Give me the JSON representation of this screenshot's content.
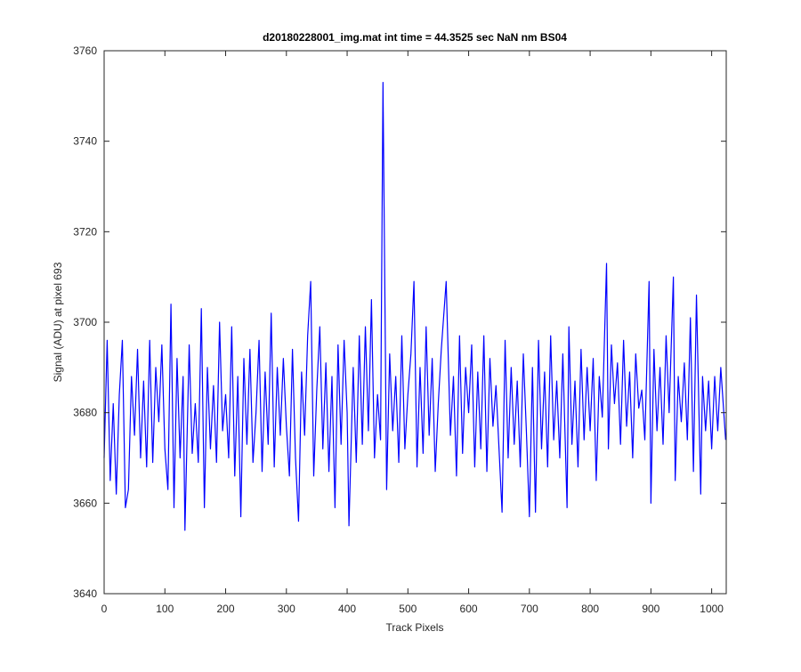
{
  "chart_data": {
    "type": "line",
    "title": "d20180228001_img.mat int time = 44.3525 sec  NaN nm BS04",
    "x_label": "Track Pixels",
    "y_label": "Signal (ADU) at pixel 693",
    "xlim": [
      0,
      1024
    ],
    "ylim": [
      3640,
      3760
    ],
    "xticks": [
      0,
      100,
      200,
      300,
      400,
      500,
      600,
      700,
      800,
      900,
      1000
    ],
    "yticks": [
      3640,
      3660,
      3680,
      3700,
      3720,
      3740,
      3760
    ],
    "series": [
      {
        "color": "#0000ff",
        "x": [
          0,
          5,
          10,
          15,
          20,
          25,
          30,
          35,
          40,
          45,
          50,
          55,
          60,
          65,
          70,
          75,
          80,
          85,
          90,
          95,
          100,
          105,
          110,
          115,
          120,
          125,
          130,
          133,
          140,
          145,
          150,
          155,
          160,
          165,
          170,
          175,
          180,
          185,
          190,
          195,
          200,
          205,
          210,
          215,
          220,
          225,
          230,
          235,
          240,
          245,
          250,
          255,
          260,
          265,
          270,
          275,
          280,
          285,
          290,
          295,
          300,
          305,
          310,
          315,
          320,
          325,
          330,
          335,
          340,
          345,
          350,
          355,
          360,
          365,
          370,
          375,
          380,
          385,
          390,
          395,
          400,
          403,
          410,
          415,
          420,
          425,
          430,
          435,
          440,
          445,
          450,
          455,
          459,
          465,
          470,
          475,
          480,
          485,
          490,
          495,
          500,
          505,
          510,
          515,
          520,
          525,
          530,
          535,
          540,
          545,
          550,
          555,
          563,
          570,
          575,
          580,
          585,
          590,
          595,
          600,
          605,
          610,
          615,
          620,
          625,
          630,
          635,
          640,
          645,
          650,
          655,
          660,
          665,
          670,
          675,
          680,
          685,
          690,
          695,
          700,
          705,
          710,
          715,
          720,
          725,
          730,
          735,
          740,
          745,
          750,
          755,
          762,
          765,
          770,
          775,
          780,
          785,
          790,
          795,
          800,
          805,
          810,
          815,
          820,
          827,
          830,
          835,
          840,
          845,
          850,
          855,
          860,
          865,
          870,
          875,
          880,
          885,
          890,
          897,
          900,
          905,
          910,
          915,
          920,
          925,
          930,
          937,
          940,
          945,
          950,
          955,
          960,
          965,
          970,
          975,
          982,
          985,
          990,
          995,
          1000,
          1005,
          1010,
          1015,
          1020,
          1023
        ],
        "values": [
          3670,
          3696,
          3665,
          3682,
          3662,
          3684,
          3696,
          3659,
          3663,
          3688,
          3675,
          3694,
          3670,
          3687,
          3668,
          3696,
          3669,
          3690,
          3678,
          3695,
          3672,
          3663,
          3704,
          3659,
          3692,
          3670,
          3688,
          3654,
          3695,
          3671,
          3682,
          3669,
          3703,
          3659,
          3690,
          3672,
          3686,
          3669,
          3700,
          3676,
          3684,
          3670,
          3699,
          3666,
          3688,
          3657,
          3692,
          3673,
          3694,
          3669,
          3680,
          3696,
          3667,
          3689,
          3673,
          3702,
          3668,
          3690,
          3675,
          3692,
          3677,
          3666,
          3694,
          3670,
          3656,
          3689,
          3675,
          3697,
          3709,
          3666,
          3685,
          3699,
          3672,
          3691,
          3667,
          3688,
          3659,
          3695,
          3673,
          3696,
          3680,
          3655,
          3690,
          3669,
          3697,
          3673,
          3699,
          3676,
          3705,
          3670,
          3684,
          3674,
          3753,
          3663,
          3693,
          3676,
          3688,
          3669,
          3697,
          3672,
          3684,
          3693,
          3709,
          3668,
          3690,
          3671,
          3699,
          3675,
          3692,
          3667,
          3682,
          3694,
          3709,
          3675,
          3688,
          3666,
          3697,
          3671,
          3690,
          3680,
          3695,
          3668,
          3689,
          3672,
          3697,
          3667,
          3692,
          3677,
          3686,
          3672,
          3658,
          3696,
          3670,
          3690,
          3673,
          3687,
          3668,
          3693,
          3676,
          3657,
          3690,
          3658,
          3696,
          3672,
          3689,
          3668,
          3697,
          3674,
          3687,
          3670,
          3693,
          3659,
          3699,
          3673,
          3687,
          3668,
          3694,
          3674,
          3690,
          3676,
          3692,
          3665,
          3688,
          3679,
          3713,
          3672,
          3695,
          3682,
          3691,
          3673,
          3696,
          3677,
          3689,
          3670,
          3693,
          3681,
          3685,
          3674,
          3709,
          3660,
          3694,
          3676,
          3690,
          3673,
          3697,
          3680,
          3710,
          3665,
          3688,
          3678,
          3691,
          3674,
          3701,
          3667,
          3706,
          3662,
          3688,
          3676,
          3687,
          3672,
          3688,
          3676,
          3690,
          3680,
          3674
        ]
      }
    ]
  }
}
